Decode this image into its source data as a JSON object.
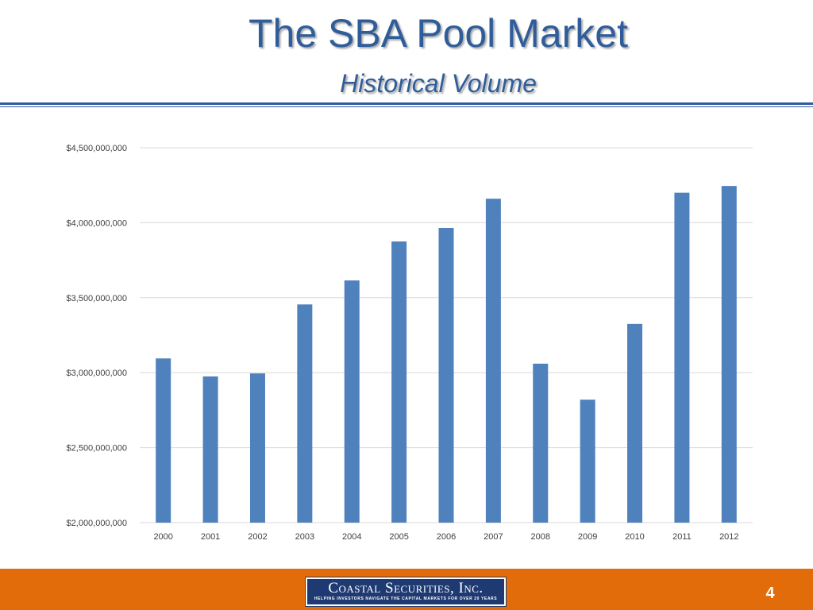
{
  "slide": {
    "title": "The SBA Pool Market",
    "subtitle": "Historical Volume",
    "page_number": "4"
  },
  "footer": {
    "company_name": "Coastal Securities, Inc.",
    "tagline": "Helping investors navigate the capital markets for over 20 years"
  },
  "colors": {
    "title": "#2f5d9a",
    "bar": "#4f81bd",
    "footer": "#e36c0a",
    "logo": "#1f3a73",
    "grid": "#d9d9d9"
  },
  "chart_data": {
    "type": "bar",
    "title": "",
    "xlabel": "",
    "ylabel": "",
    "categories": [
      "2000",
      "2001",
      "2002",
      "2003",
      "2004",
      "2005",
      "2006",
      "2007",
      "2008",
      "2009",
      "2010",
      "2011",
      "2012"
    ],
    "values": [
      3095000000,
      2975000000,
      2995000000,
      3455000000,
      3615000000,
      3875000000,
      3965000000,
      4160000000,
      3060000000,
      2820000000,
      3325000000,
      4200000000,
      4245000000
    ],
    "ylim": [
      2000000000,
      4500000000
    ],
    "yticks": [
      {
        "value": 2000000000,
        "label": "$2,000,000,000"
      },
      {
        "value": 2500000000,
        "label": "$2,500,000,000"
      },
      {
        "value": 3000000000,
        "label": "$3,000,000,000"
      },
      {
        "value": 3500000000,
        "label": "$3,500,000,000"
      },
      {
        "value": 4000000000,
        "label": "$4,000,000,000"
      },
      {
        "value": 4500000000,
        "label": "$4,500,000,000"
      }
    ],
    "grid": true,
    "legend": "none"
  }
}
